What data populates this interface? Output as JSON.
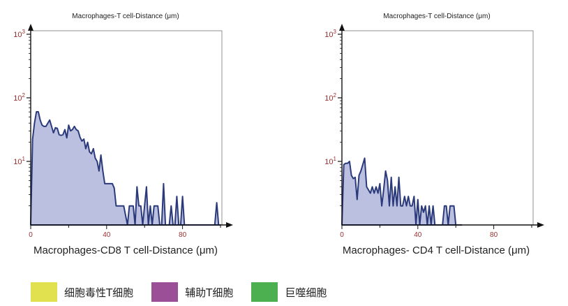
{
  "chart_data": [
    {
      "type": "area",
      "title": "Macrophages-T cell-Distance (μm)",
      "xlabel": "Macrophages-CD8 T cell-Distance (μm)",
      "ylabel": "",
      "y_scale": "log",
      "xlim": [
        0,
        104
      ],
      "ylim_exponent": [
        0,
        3
      ],
      "x_ticks": [
        "0",
        "40",
        "80"
      ],
      "x_tick_values": [
        0,
        40,
        80
      ],
      "y_ticks": [
        {
          "base": "10",
          "exp": "1",
          "value": 1
        },
        {
          "base": "10",
          "exp": "2",
          "value": 2
        },
        {
          "base": "10",
          "exp": "3",
          "value": 3
        }
      ],
      "fill_color": "#bcc0e0",
      "line_color": "#2b3a7a",
      "x": [
        0,
        1,
        2,
        3,
        4,
        5,
        6,
        7,
        8,
        9,
        10,
        11,
        12,
        13,
        14,
        15,
        16,
        17,
        18,
        19,
        20,
        21,
        22,
        23,
        24,
        25,
        26,
        27,
        28,
        29,
        30,
        31,
        32,
        33,
        34,
        35,
        36,
        37,
        38,
        39,
        40,
        41,
        42,
        43,
        44,
        45,
        46,
        47,
        48,
        49,
        50,
        51,
        52,
        53,
        54,
        55,
        56,
        57,
        58,
        59,
        60,
        61,
        62,
        63,
        64,
        65,
        66,
        67,
        68,
        69,
        70,
        71,
        72,
        73,
        74,
        75,
        76,
        77,
        78,
        79,
        80,
        81,
        82,
        83,
        84,
        85,
        86,
        87,
        88,
        89,
        90,
        91,
        92,
        93,
        94,
        95,
        96,
        97,
        98,
        99,
        100
      ],
      "values": [
        0,
        1.35,
        1.6,
        1.78,
        1.78,
        1.65,
        1.57,
        1.55,
        1.55,
        1.6,
        1.65,
        1.55,
        1.45,
        1.53,
        1.52,
        1.42,
        1.41,
        1.42,
        1.5,
        1.37,
        1.57,
        1.48,
        1.5,
        1.55,
        1.5,
        1.48,
        1.38,
        1.32,
        1.35,
        1.2,
        1.3,
        1.15,
        1.12,
        1.2,
        1.05,
        1.0,
        0.85,
        1.1,
        0.85,
        0.65,
        0.65,
        0.65,
        0.65,
        0.65,
        0.58,
        0.3,
        0.3,
        0.3,
        0.3,
        0.3,
        0.15,
        0,
        0.3,
        0.3,
        0.3,
        0,
        0.6,
        0.3,
        0.3,
        0,
        0.3,
        0.6,
        0,
        0.3,
        0,
        0.3,
        0.3,
        0.3,
        0,
        0,
        0.65,
        0,
        0,
        0,
        0.3,
        0,
        0,
        0.45,
        0,
        0,
        0.45,
        0,
        0,
        0,
        0,
        0,
        0,
        0,
        0,
        0,
        0,
        0,
        0,
        0,
        0,
        0,
        0,
        0,
        0.35,
        0,
        0
      ]
    },
    {
      "type": "area",
      "title": "Macrophages-T cell-Distance (μm)",
      "xlabel": "Macrophages- CD4 T cell-Distance (μm)",
      "ylabel": "",
      "y_scale": "log",
      "xlim": [
        0,
        104
      ],
      "ylim_exponent": [
        0,
        3
      ],
      "x_ticks": [
        "0",
        "40",
        "80"
      ],
      "x_tick_values": [
        0,
        40,
        80
      ],
      "y_ticks": [
        {
          "base": "10",
          "exp": "1",
          "value": 1
        },
        {
          "base": "10",
          "exp": "2",
          "value": 2
        },
        {
          "base": "10",
          "exp": "3",
          "value": 3
        }
      ],
      "fill_color": "#bcc0e0",
      "line_color": "#2b3a7a",
      "x": [
        0,
        1,
        2,
        3,
        4,
        5,
        6,
        7,
        8,
        9,
        10,
        11,
        12,
        13,
        14,
        15,
        16,
        17,
        18,
        19,
        20,
        21,
        22,
        23,
        24,
        25,
        26,
        27,
        28,
        29,
        30,
        31,
        32,
        33,
        34,
        35,
        36,
        37,
        38,
        39,
        40,
        41,
        42,
        43,
        44,
        45,
        46,
        47,
        48,
        49,
        50,
        51,
        52,
        53,
        54,
        55,
        56,
        57,
        58,
        59,
        60,
        61,
        62,
        63
      ],
      "values": [
        0,
        0.95,
        0.97,
        0.97,
        1.0,
        0.78,
        0.73,
        0.75,
        0.4,
        0.78,
        0.85,
        0.95,
        1.05,
        0.6,
        0.55,
        0.5,
        0.6,
        0.5,
        0.6,
        0.5,
        0.65,
        0.3,
        0.55,
        0.85,
        0.7,
        0.3,
        0.75,
        0.3,
        0.6,
        0.3,
        0.75,
        0.3,
        0.3,
        0.45,
        0.3,
        0.45,
        0.3,
        0.3,
        0.45,
        0,
        0.4,
        0,
        0.3,
        0.2,
        0.3,
        0,
        0.3,
        0,
        0.3,
        0,
        0,
        0,
        0,
        0,
        0.3,
        0.3,
        0,
        0.3,
        0.3,
        0.3,
        0,
        0,
        0,
        0
      ]
    }
  ],
  "legend": [
    {
      "label": "细胞毒性T细胞",
      "color": "#e1e04f"
    },
    {
      "label": "辅助T细胞",
      "color": "#9b4f96"
    },
    {
      "label": "巨噬细胞",
      "color": "#4caf50"
    }
  ]
}
